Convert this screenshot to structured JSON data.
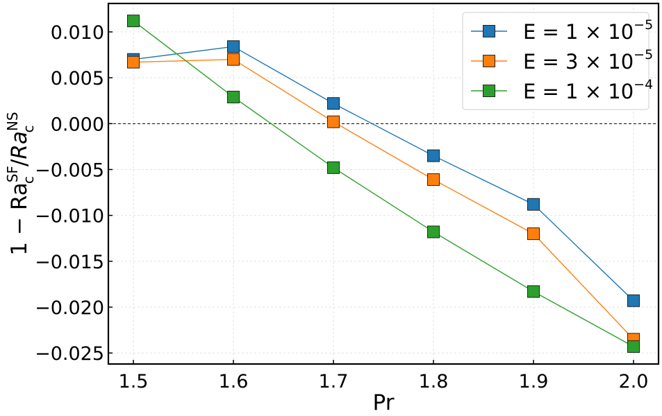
{
  "chart_data": {
    "type": "line",
    "title": "",
    "xlabel": "Pr",
    "ylabel": "1 − Ra",
    "ylabel_parts": {
      "base1": "Ra",
      "sup1": "SF",
      "sub1": "c",
      "sep": "/",
      "base2": "Ra",
      "sup2": "NS",
      "sub2": "c"
    },
    "x": [
      1.5,
      1.6,
      1.7,
      1.8,
      1.9,
      2.0
    ],
    "xlim": [
      1.475,
      2.025
    ],
    "ylim": [
      -0.0262,
      0.0131
    ],
    "xticks": [
      "1.5",
      "1.6",
      "1.7",
      "1.8",
      "1.9",
      "2.0"
    ],
    "yticks": [
      "0.010",
      "0.005",
      "0.000",
      "−0.005",
      "−0.010",
      "−0.015",
      "−0.020",
      "−0.025"
    ],
    "ytick_values": [
      0.01,
      0.005,
      0.0,
      -0.005,
      -0.01,
      -0.015,
      -0.02,
      -0.025
    ],
    "grid": true,
    "reference_line_y": 0.0,
    "legend_position": "top-right",
    "series": [
      {
        "name": "E = 1 × 10⁻⁵",
        "label_base": "E = 1 × 10",
        "label_exp": "−5",
        "color": "#1f77b4",
        "values": [
          0.007,
          0.0084,
          0.0022,
          -0.0035,
          -0.0088,
          -0.0193
        ]
      },
      {
        "name": "E = 3 × 10⁻⁵",
        "label_base": "E = 3 × 10",
        "label_exp": "−5",
        "color": "#ff7f0e",
        "values": [
          0.0067,
          0.007,
          0.0002,
          -0.0061,
          -0.012,
          -0.0235
        ]
      },
      {
        "name": "E = 1 × 10⁻⁴",
        "label_base": "E = 1 × 10",
        "label_exp": "−4",
        "color": "#2ca02c",
        "values": [
          0.0112,
          0.0029,
          -0.0048,
          -0.0118,
          -0.0183,
          -0.0243
        ]
      }
    ]
  }
}
